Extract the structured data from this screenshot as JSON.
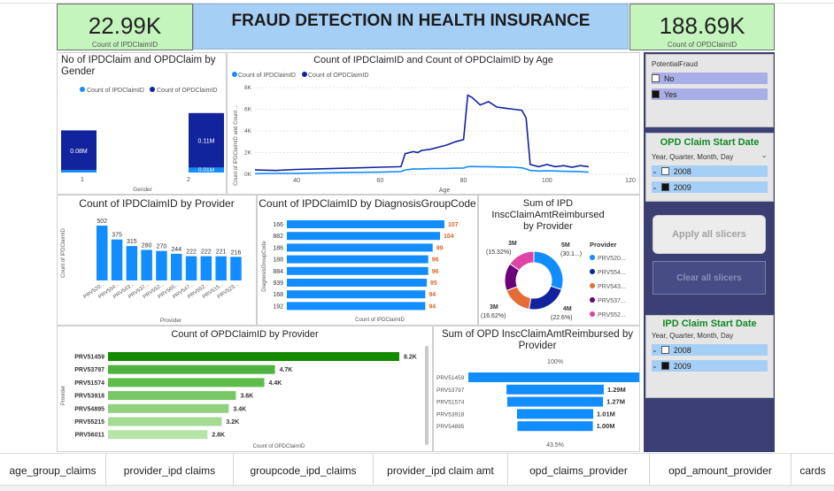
{
  "dashboard_title": "FRAUD DETECTION IN HEALTH INSURANCE",
  "kpi_ipd": {
    "value": "22.99K",
    "label": "Count of IPDClaimID"
  },
  "kpi_opd": {
    "value": "188.69K",
    "label": "Count of OPDClaimID"
  },
  "colors": {
    "ipd": "#118dff",
    "opd": "#12239e",
    "kpi_bg": "#c4f5bd",
    "banner": "#a6cff5",
    "sidebar": "#3b3f74",
    "green_dark": "#138a00"
  },
  "gender_chart": {
    "title": "No of IPDClaim and OPDClaim by Gender",
    "legend": [
      "Count of IPDClaimID",
      "Count of OPDClaimID"
    ],
    "xlabel": "Gender",
    "bars": [
      {
        "category": "1",
        "ipd_label": "",
        "opd_label": "0.08M"
      },
      {
        "category": "2",
        "ipd_label": "0.01M",
        "opd_label": "0.11M"
      }
    ]
  },
  "age_chart": {
    "title": "Count of IPDClaimID and Count of OPDClaimID by Age",
    "legend": [
      "Count of IPDClaimID",
      "Count of OPDClaimID"
    ],
    "ylabel": "Count of IPDClaimID and Count ...",
    "xlabel": "Age",
    "yticks": [
      "0K",
      "2K",
      "4K",
      "6K",
      "8K"
    ],
    "xticks": [
      "40",
      "60",
      "80",
      "100",
      "120"
    ]
  },
  "provider_ipd": {
    "title": "Count of IPDClaimID by Provider",
    "ylabel": "Count of IPDClaimID",
    "xlabel": "Provider",
    "values": [
      "502",
      "375",
      "315",
      "280",
      "270",
      "244",
      "222",
      "222",
      "221",
      "216"
    ],
    "xticks": [
      "PRV520...",
      "PRV554...",
      "PRV543...",
      "PRV537...",
      "PRV552...",
      "PRV565...",
      "PRV547...",
      "PRV552...",
      "PRV515...",
      "PRV523..."
    ]
  },
  "diagnosis_chart": {
    "title": "Count of IPDClaimID by DiagnosisGroupCode",
    "ylabel": "DiagnosisGroupCode",
    "xlabel": "Count of IPDClaimID",
    "rows": [
      {
        "code": "166",
        "value": "107"
      },
      {
        "code": "882",
        "value": "104"
      },
      {
        "code": "186",
        "value": "99"
      },
      {
        "code": "188",
        "value": "96"
      },
      {
        "code": "884",
        "value": "96"
      },
      {
        "code": "939",
        "value": "95"
      },
      {
        "code": "168",
        "value": "94"
      },
      {
        "code": "192",
        "value": "94"
      }
    ]
  },
  "donut_chart": {
    "title": "Sum of IPD InscClaimAmtReimbursed by Provider",
    "legend_title": "Provider",
    "legend": [
      "PRV520...",
      "PRV554...",
      "PRV543...",
      "PRV537...",
      "PRV552..."
    ],
    "labels": [
      {
        "value": "5M",
        "pct": "(30.1...)"
      },
      {
        "value": "4M",
        "pct": "(22.6%)"
      },
      {
        "value": "3M",
        "pct": "(16.62%)"
      },
      {
        "value": "3M",
        "pct": "(15.32%)"
      }
    ]
  },
  "opd_provider": {
    "title": "Count of OPDClaimID by Provider",
    "ylabel": "Provider",
    "xlabel": "Count of OPDClaimID",
    "rows": [
      {
        "name": "PRV51459",
        "value": "8.2K"
      },
      {
        "name": "PRV53797",
        "value": "4.7K"
      },
      {
        "name": "PRV51574",
        "value": "4.4K"
      },
      {
        "name": "PRV53918",
        "value": "3.6K"
      },
      {
        "name": "PRV54895",
        "value": "3.4K"
      },
      {
        "name": "PRV55215",
        "value": "3.2K"
      },
      {
        "name": "PRV56011",
        "value": "2.8K"
      }
    ]
  },
  "opd_amount": {
    "title": "Sum of OPD InscClaimAmtReimbursed by Provider",
    "top_pct": "100%",
    "bottom_pct": "43.5%",
    "rows": [
      {
        "name": "PRV51459",
        "value": ""
      },
      {
        "name": "PRV53797",
        "value": "1.29M"
      },
      {
        "name": "PRV51574",
        "value": "1.27M"
      },
      {
        "name": "PRV53918",
        "value": "1.01M"
      },
      {
        "name": "PRV54895",
        "value": "1.00M"
      }
    ]
  },
  "slicer_fraud": {
    "title": "PotentialFraud",
    "items": [
      {
        "label": "No",
        "checked": false
      },
      {
        "label": "Yes",
        "checked": true
      }
    ]
  },
  "slicer_opd_date": {
    "title": "OPD Claim Start Date",
    "sub": "Year, Quarter, Month, Day",
    "items": [
      "2008",
      "2009"
    ]
  },
  "slicer_ipd_date": {
    "title": "IPD Claim Start Date",
    "sub": "Year, Quarter, Month, Day",
    "items": [
      "2008",
      "2009"
    ]
  },
  "buttons": {
    "apply": "Apply all slicers",
    "clear": "Clear all slicers"
  },
  "tabs": [
    "age_group_claims",
    "provider_ipd claims",
    "groupcode_ipd_claims",
    "provider_ipd claim amt",
    "opd_claims_provider",
    "opd_amount_provider",
    "cards"
  ],
  "chart_data": [
    {
      "type": "bar",
      "title": "No of IPDClaim and OPDClaim by Gender",
      "categories": [
        "1",
        "2"
      ],
      "series": [
        {
          "name": "Count of IPDClaimID",
          "values": [
            0.005,
            0.01
          ]
        },
        {
          "name": "Count of OPDClaimID",
          "values": [
            0.08,
            0.11
          ]
        }
      ],
      "xlabel": "Gender",
      "ylabel": "",
      "unit": "M"
    },
    {
      "type": "line",
      "title": "Count of IPDClaimID and Count of OPDClaimID by Age",
      "x": [
        30,
        35,
        40,
        45,
        50,
        55,
        60,
        65,
        66,
        67,
        68,
        69,
        70,
        72,
        74,
        76,
        78,
        80,
        81,
        82,
        84,
        86,
        88,
        90,
        92,
        94,
        95,
        96,
        98,
        100,
        102,
        104,
        106,
        108,
        110
      ],
      "series": [
        {
          "name": "Count of IPDClaimID",
          "values": [
            60,
            80,
            90,
            120,
            150,
            180,
            200,
            250,
            400,
            450,
            500,
            480,
            500,
            520,
            530,
            540,
            560,
            580,
            700,
            720,
            700,
            700,
            680,
            660,
            650,
            600,
            500,
            350,
            300,
            320,
            300,
            280,
            260,
            240,
            200
          ]
        },
        {
          "name": "Count of OPDClaimID",
          "values": [
            400,
            350,
            450,
            500,
            550,
            600,
            650,
            700,
            1900,
            2000,
            2100,
            2000,
            2200,
            2300,
            2500,
            2700,
            3000,
            3200,
            7300,
            7100,
            6400,
            6700,
            6200,
            6100,
            6000,
            5900,
            5200,
            900,
            700,
            900,
            700,
            800,
            650,
            800,
            700
          ]
        }
      ],
      "xlabel": "Age",
      "ylabel": "Count of IPDClaimID and Count ...",
      "ylim": [
        0,
        8000
      ],
      "xlim": [
        30,
        120
      ]
    },
    {
      "type": "bar",
      "title": "Count of IPDClaimID by Provider",
      "categories": [
        "PRV520...",
        "PRV554...",
        "PRV543...",
        "PRV537...",
        "PRV552...",
        "PRV565...",
        "PRV547...",
        "PRV552...",
        "PRV515...",
        "PRV523..."
      ],
      "values": [
        502,
        375,
        315,
        280,
        270,
        244,
        222,
        222,
        221,
        216
      ],
      "xlabel": "Provider",
      "ylabel": "Count of IPDClaimID"
    },
    {
      "type": "bar",
      "title": "Count of IPDClaimID by DiagnosisGroupCode",
      "categories": [
        "166",
        "882",
        "186",
        "188",
        "884",
        "939",
        "168",
        "192"
      ],
      "values": [
        107,
        104,
        99,
        96,
        96,
        95,
        94,
        94
      ],
      "xlabel": "Count of IPDClaimID",
      "ylabel": "DiagnosisGroupCode"
    },
    {
      "type": "pie",
      "title": "Sum of IPD InscClaimAmtReimbursed by Provider",
      "categories": [
        "PRV520...",
        "PRV554...",
        "PRV543...",
        "PRV537...",
        "PRV552..."
      ],
      "values": [
        30.1,
        22.6,
        16.62,
        15.36,
        15.32
      ]
    },
    {
      "type": "bar",
      "title": "Count of OPDClaimID by Provider",
      "categories": [
        "PRV51459",
        "PRV53797",
        "PRV51574",
        "PRV53918",
        "PRV54895",
        "PRV55215",
        "PRV56011"
      ],
      "values": [
        8200,
        4700,
        4400,
        3600,
        3400,
        3200,
        2800
      ],
      "xlabel": "Count of OPDClaimID",
      "ylabel": "Provider"
    },
    {
      "type": "bar",
      "title": "Sum of OPD InscClaimAmtReimbursed by Provider",
      "categories": [
        "PRV51459",
        "PRV53797",
        "PRV51574",
        "PRV53918",
        "PRV54895"
      ],
      "values": [
        2.3,
        1.29,
        1.27,
        1.01,
        1.0
      ],
      "unit": "M"
    }
  ]
}
